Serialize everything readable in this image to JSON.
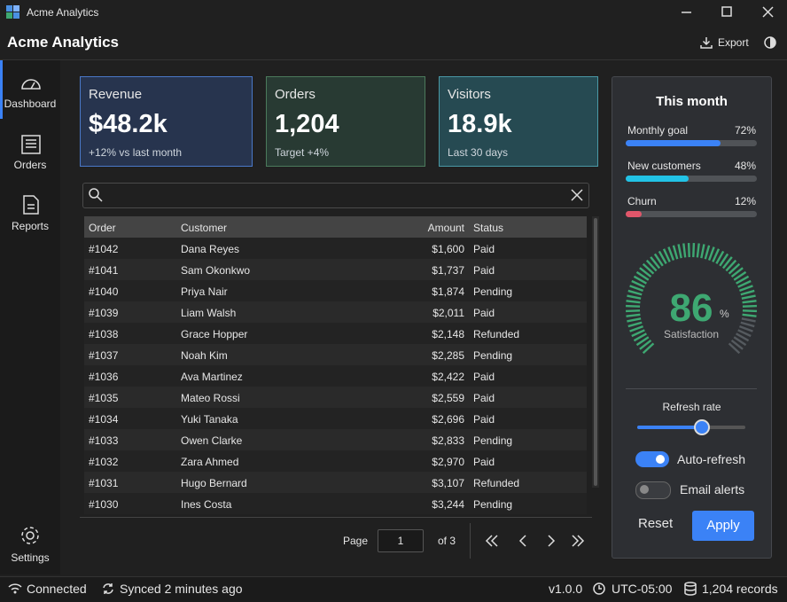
{
  "window": {
    "title": "Acme Analytics"
  },
  "header": {
    "title": "Acme Analytics",
    "export": "Export"
  },
  "sidebar": {
    "items": [
      "Dashboard",
      "Orders",
      "Reports"
    ],
    "settings": "Settings"
  },
  "cards": [
    {
      "title": "Revenue",
      "value": "$48.2k",
      "note": "+12% vs last month"
    },
    {
      "title": "Orders",
      "value": "1,204",
      "note": "Target +4%"
    },
    {
      "title": "Visitors",
      "value": "18.9k",
      "note": "Last 30 days"
    }
  ],
  "table": {
    "columns": [
      "Order",
      "Customer",
      "Amount",
      "Status"
    ],
    "rows": [
      [
        "#1042",
        "Dana Reyes",
        "$1,600",
        "Paid"
      ],
      [
        "#1041",
        "Sam Okonkwo",
        "$1,737",
        "Paid"
      ],
      [
        "#1040",
        "Priya Nair",
        "$1,874",
        "Pending"
      ],
      [
        "#1039",
        "Liam Walsh",
        "$2,011",
        "Paid"
      ],
      [
        "#1038",
        "Grace Hopper",
        "$2,148",
        "Refunded"
      ],
      [
        "#1037",
        "Noah Kim",
        "$2,285",
        "Pending"
      ],
      [
        "#1036",
        "Ava Martinez",
        "$2,422",
        "Paid"
      ],
      [
        "#1035",
        "Mateo Rossi",
        "$2,559",
        "Paid"
      ],
      [
        "#1034",
        "Yuki Tanaka",
        "$2,696",
        "Paid"
      ],
      [
        "#1033",
        "Owen Clarke",
        "$2,833",
        "Pending"
      ],
      [
        "#1032",
        "Zara Ahmed",
        "$2,970",
        "Paid"
      ],
      [
        "#1031",
        "Hugo Bernard",
        "$3,107",
        "Refunded"
      ],
      [
        "#1030",
        "Ines Costa",
        "$3,244",
        "Pending"
      ]
    ]
  },
  "pagination": {
    "label": "Page",
    "current": "1",
    "of": "of 3"
  },
  "panel": {
    "title": "This month",
    "progress": [
      {
        "label": "Monthly goal",
        "value": 72,
        "value_label": "72%",
        "color": "#3b82f6"
      },
      {
        "label": "New customers",
        "value": 48,
        "value_label": "48%",
        "color": "#22c3e6"
      },
      {
        "label": "Churn",
        "value": 12,
        "value_label": "12%",
        "color": "#e0566a"
      }
    ],
    "gauge": {
      "value": 86,
      "unit": "%",
      "label": "Satisfaction",
      "color": "#3ea872"
    },
    "slider_label": "Refresh rate",
    "toggles": [
      {
        "label": "Auto-refresh",
        "on": true
      },
      {
        "label": "Email alerts",
        "on": false
      }
    ],
    "reset": "Reset",
    "apply": "Apply"
  },
  "status": {
    "connection": "Connected",
    "synced": "Synced 2 minutes ago",
    "version": "v1.0.0",
    "timezone": "UTC-05:00",
    "records": "1,204 records"
  }
}
